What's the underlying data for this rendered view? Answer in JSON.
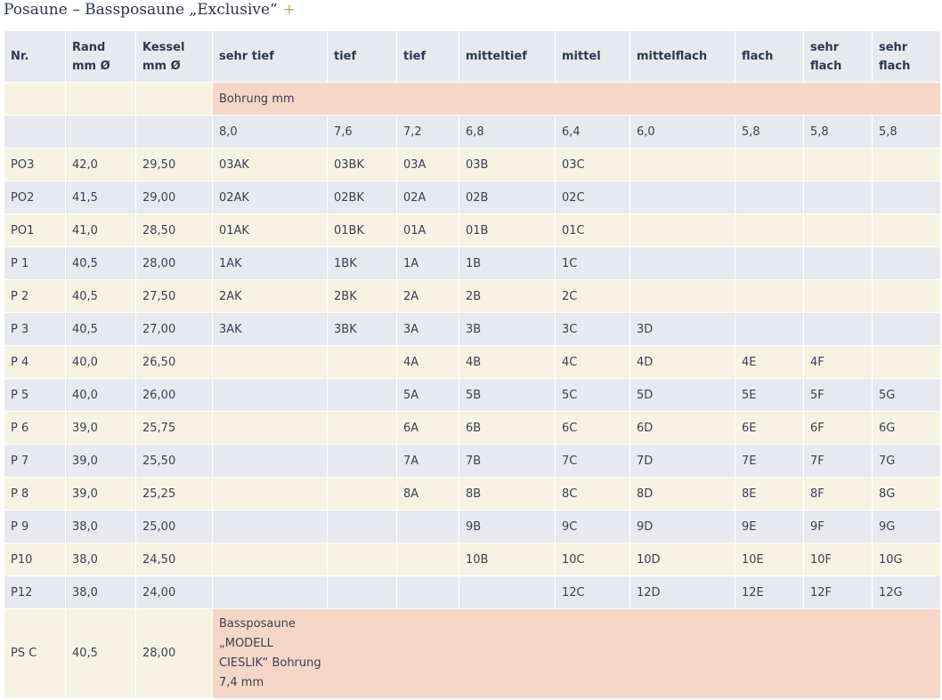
{
  "title": "Posaune – Bassposaune „Exclusive“",
  "title_icon": "plus-icon",
  "headers": {
    "nr": "Nr.",
    "rand": "Rand mm Ø",
    "kessel": "Kessel mm Ø",
    "c1": "sehr tief",
    "c2": "tief",
    "c3": "tief",
    "c4": "mitteltief",
    "c5": "mittel",
    "c6": "mittelflach",
    "c7": "flach",
    "c8": "sehr flach",
    "c9": "sehr flach"
  },
  "bohrung_label": "Bohrung mm",
  "bohrung_values": [
    "8,0",
    "7,6",
    "7,2",
    "6,8",
    "6,4",
    "6,0",
    "5,8",
    "5,8",
    "5,8"
  ],
  "rows": [
    {
      "nr": "PO3",
      "rand": "42,0",
      "kessel": "29,50",
      "c": [
        "03AK",
        "03BK",
        "03A",
        "03B",
        "03C",
        "",
        "",
        "",
        ""
      ]
    },
    {
      "nr": "PO2",
      "rand": "41,5",
      "kessel": "29,00",
      "c": [
        "02AK",
        "02BK",
        "02A",
        "02B",
        "02C",
        "",
        "",
        "",
        ""
      ]
    },
    {
      "nr": "PO1",
      "rand": "41,0",
      "kessel": "28,50",
      "c": [
        "01AK",
        "01BK",
        "01A",
        "01B",
        "01C",
        "",
        "",
        "",
        ""
      ]
    },
    {
      "nr": "P 1",
      "rand": "40,5",
      "kessel": "28,00",
      "c": [
        "1AK",
        "1BK",
        "1A",
        "1B",
        "1C",
        "",
        "",
        "",
        ""
      ]
    },
    {
      "nr": "P 2",
      "rand": "40,5",
      "kessel": "27,50",
      "c": [
        "2AK",
        "2BK",
        "2A",
        "2B",
        "2C",
        "",
        "",
        "",
        ""
      ]
    },
    {
      "nr": "P 3",
      "rand": "40,5",
      "kessel": "27,00",
      "c": [
        "3AK",
        "3BK",
        "3A",
        "3B",
        "3C",
        "3D",
        "",
        "",
        ""
      ]
    },
    {
      "nr": "P 4",
      "rand": "40,0",
      "kessel": "26,50",
      "c": [
        "",
        "",
        "4A",
        "4B",
        "4C",
        "4D",
        "4E",
        "4F",
        ""
      ]
    },
    {
      "nr": "P 5",
      "rand": "40,0",
      "kessel": "26,00",
      "c": [
        "",
        "",
        "5A",
        "5B",
        "5C",
        "5D",
        "5E",
        "5F",
        "5G"
      ]
    },
    {
      "nr": "P 6",
      "rand": "39,0",
      "kessel": "25,75",
      "c": [
        "",
        "",
        "6A",
        "6B",
        "6C",
        "6D",
        "6E",
        "6F",
        "6G"
      ]
    },
    {
      "nr": "P 7",
      "rand": "39,0",
      "kessel": "25,50",
      "c": [
        "",
        "",
        "7A",
        "7B",
        "7C",
        "7D",
        "7E",
        "7F",
        "7G"
      ]
    },
    {
      "nr": "P 8",
      "rand": "39,0",
      "kessel": "25,25",
      "c": [
        "",
        "",
        "8A",
        "8B",
        "8C",
        "8D",
        "8E",
        "8F",
        "8G"
      ]
    },
    {
      "nr": "P 9",
      "rand": "38,0",
      "kessel": "25,00",
      "c": [
        "",
        "",
        "",
        "9B",
        "9C",
        "9D",
        "9E",
        "9F",
        "9G"
      ]
    },
    {
      "nr": "P10",
      "rand": "38,0",
      "kessel": "24,50",
      "c": [
        "",
        "",
        "",
        "10B",
        "10C",
        "10D",
        "10E",
        "10F",
        "10G"
      ]
    },
    {
      "nr": "P12",
      "rand": "38,0",
      "kessel": "24,00",
      "c": [
        "",
        "",
        "",
        "",
        "12C",
        "12D",
        "12E",
        "12F",
        "12G"
      ]
    }
  ],
  "last_row": {
    "nr": "PS C",
    "rand": "40,5",
    "kessel": "28,00",
    "note": "Bassposaune „MODELL CIESLIK“ Bohrung 7,4 mm"
  }
}
